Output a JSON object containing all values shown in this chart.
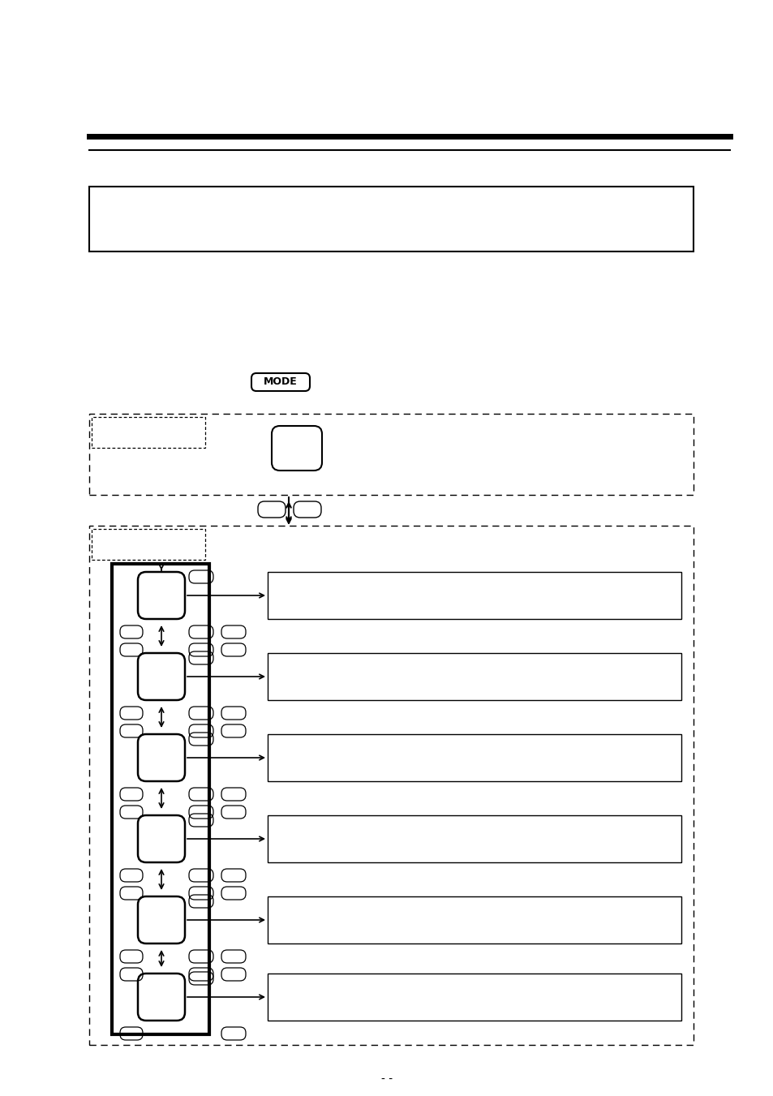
{
  "bg_color": "#ffffff",
  "page_num": "- -"
}
